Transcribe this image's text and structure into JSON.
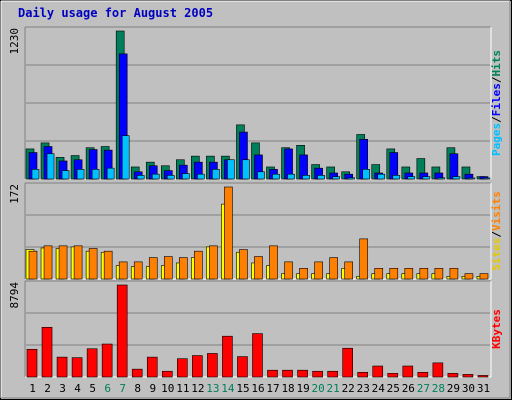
{
  "title": "Daily usage for August 2005",
  "colors": {
    "background": "#c0c0c0",
    "border_dark": "#808080",
    "title": "#0000c0",
    "hits": "#00805a",
    "files": "#0000ff",
    "pages": "#00c0ff",
    "visits": "#ff8000",
    "sites": "#ffff00",
    "kbytes": "#ff0000",
    "weekend_label": "#00805a",
    "weekday_label": "#000000"
  },
  "chart_data": [
    {
      "type": "bar",
      "panel": "hits-files-pages",
      "y_max_label": "1230",
      "ylim": [
        0,
        1230
      ],
      "legend": [
        "Pages",
        "Files",
        "Hits"
      ],
      "categories": [
        "1",
        "2",
        "3",
        "4",
        "5",
        "6",
        "7",
        "8",
        "9",
        "10",
        "11",
        "12",
        "13",
        "14",
        "15",
        "16",
        "17",
        "18",
        "19",
        "20",
        "21",
        "22",
        "23",
        "24",
        "25",
        "26",
        "27",
        "28",
        "29",
        "30",
        "31"
      ],
      "series": [
        {
          "name": "Hits",
          "color": "#00805a",
          "values": [
            250,
            300,
            180,
            195,
            260,
            270,
            1230,
            100,
            140,
            110,
            160,
            190,
            190,
            190,
            450,
            300,
            100,
            260,
            280,
            120,
            100,
            60,
            370,
            120,
            250,
            100,
            170,
            100,
            260,
            100,
            20
          ]
        },
        {
          "name": "Files",
          "color": "#0000ff",
          "values": [
            220,
            270,
            150,
            160,
            245,
            240,
            1040,
            60,
            110,
            70,
            115,
            140,
            140,
            160,
            390,
            200,
            80,
            250,
            200,
            90,
            50,
            40,
            330,
            50,
            220,
            50,
            50,
            50,
            210,
            40,
            20
          ]
        },
        {
          "name": "Pages",
          "color": "#00c0ff",
          "values": [
            80,
            210,
            70,
            80,
            80,
            90,
            360,
            30,
            40,
            30,
            45,
            40,
            80,
            160,
            160,
            60,
            40,
            40,
            30,
            30,
            20,
            10,
            80,
            40,
            30,
            20,
            20,
            10,
            20,
            5,
            5
          ]
        }
      ]
    },
    {
      "type": "bar",
      "panel": "visits-sites",
      "y_max_label": "172",
      "ylim": [
        0,
        172
      ],
      "legend": [
        "Sites",
        "Visits"
      ],
      "categories": [
        "1",
        "2",
        "3",
        "4",
        "5",
        "6",
        "7",
        "8",
        "9",
        "10",
        "11",
        "12",
        "13",
        "14",
        "15",
        "16",
        "17",
        "18",
        "19",
        "20",
        "21",
        "22",
        "23",
        "24",
        "25",
        "26",
        "27",
        "28",
        "29",
        "30",
        "31"
      ],
      "series": [
        {
          "name": "Visits",
          "color": "#ff8000",
          "values": [
            52,
            62,
            62,
            62,
            57,
            52,
            32,
            32,
            40,
            42,
            40,
            52,
            62,
            172,
            55,
            42,
            62,
            32,
            20,
            32,
            40,
            32,
            75,
            20,
            20,
            20,
            20,
            20,
            20,
            10,
            10
          ]
        },
        {
          "name": "Sites",
          "color": "#ffff00",
          "values": [
            55,
            58,
            57,
            60,
            52,
            50,
            25,
            23,
            23,
            25,
            30,
            40,
            60,
            140,
            50,
            30,
            25,
            10,
            10,
            10,
            10,
            20,
            5,
            10,
            10,
            10,
            10,
            10,
            5,
            5,
            5
          ]
        }
      ]
    },
    {
      "type": "bar",
      "panel": "kbytes",
      "y_max_label": "8794",
      "ylim": [
        0,
        8794
      ],
      "legend": [
        "KBytes"
      ],
      "categories": [
        "1",
        "2",
        "3",
        "4",
        "5",
        "6",
        "7",
        "8",
        "9",
        "10",
        "11",
        "12",
        "13",
        "14",
        "15",
        "16",
        "17",
        "18",
        "19",
        "20",
        "21",
        "22",
        "23",
        "24",
        "25",
        "26",
        "27",
        "28",
        "29",
        "30",
        "31"
      ],
      "series": [
        {
          "name": "KBytes",
          "color": "#ff0000",
          "values": [
            2650,
            4750,
            1900,
            1850,
            2700,
            3150,
            8794,
            750,
            1900,
            550,
            1750,
            2050,
            2250,
            3900,
            1950,
            4150,
            650,
            650,
            650,
            550,
            550,
            2750,
            450,
            1050,
            350,
            1050,
            450,
            1350,
            350,
            250,
            150
          ]
        }
      ]
    }
  ],
  "weekend_days": [
    "6",
    "7",
    "13",
    "14",
    "20",
    "21",
    "27",
    "28"
  ]
}
